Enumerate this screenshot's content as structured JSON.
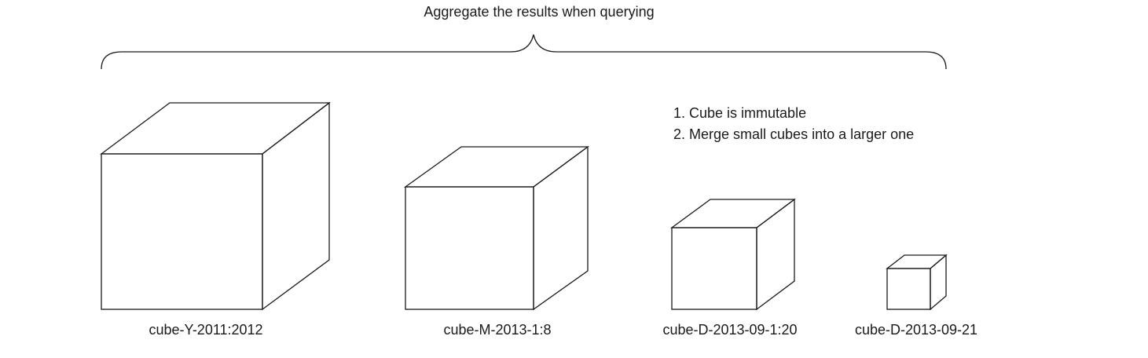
{
  "diagram": {
    "title": "Aggregate the results when querying",
    "notes": [
      "1. Cube is immutable",
      "2. Merge small cubes into a larger one"
    ],
    "cubes": [
      {
        "label": "cube-Y-2011:2012"
      },
      {
        "label": "cube-M-2013-1:8"
      },
      {
        "label": "cube-D-2013-09-1:20"
      },
      {
        "label": "cube-D-2013-09-21"
      }
    ]
  }
}
